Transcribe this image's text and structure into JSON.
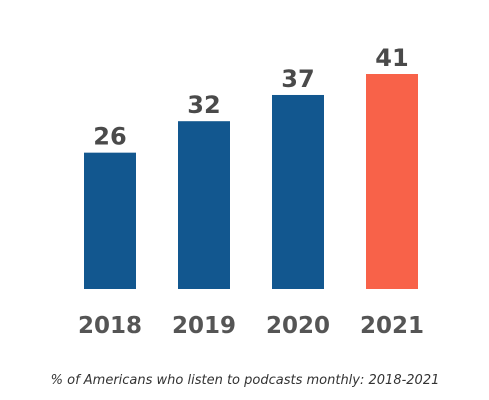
{
  "chart_data": {
    "type": "bar",
    "categories": [
      "2018",
      "2019",
      "2020",
      "2021"
    ],
    "values": [
      26,
      32,
      37,
      41
    ],
    "title": "",
    "xlabel": "",
    "ylabel": "",
    "ylim": [
      0,
      41
    ],
    "grid": false,
    "bar_colors": [
      "#12578f",
      "#12578f",
      "#12578f",
      "#f86249"
    ],
    "value_label_color": "#4a4a4a",
    "tick_label_color": "#555555"
  },
  "caption": "% of Americans who listen to podcasts monthly: 2018-2021"
}
